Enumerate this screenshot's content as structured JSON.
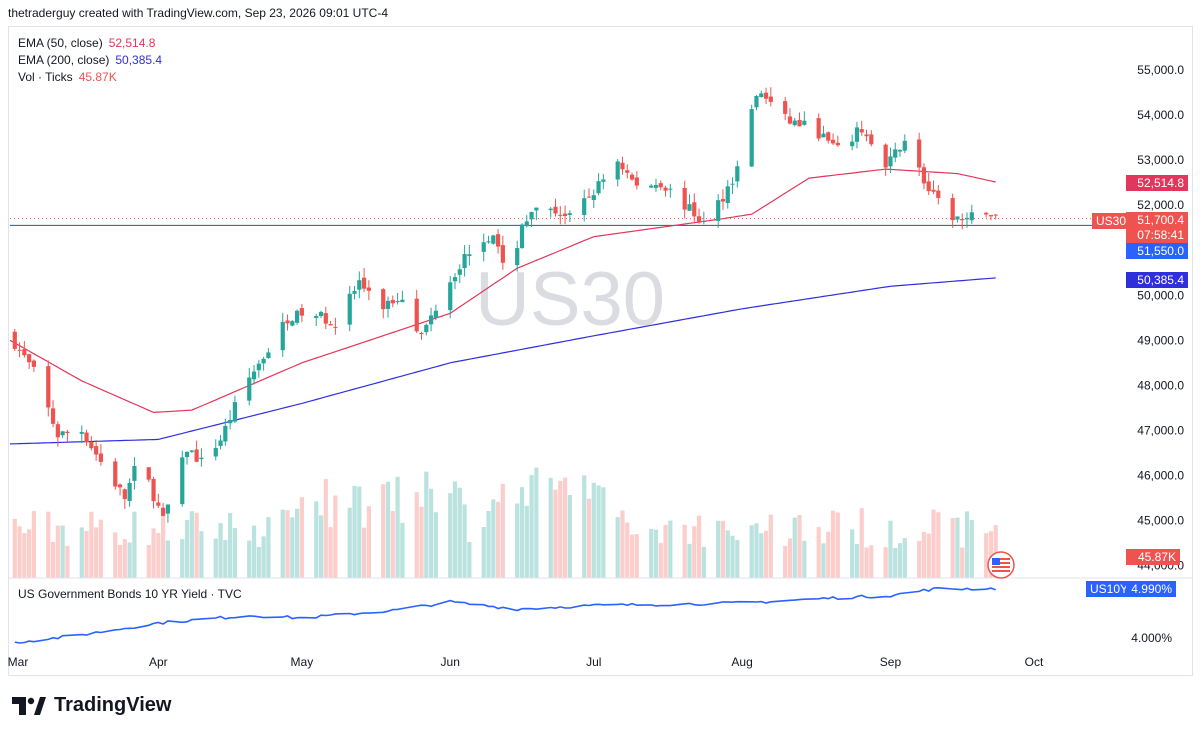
{
  "header": {
    "text": "thetraderguy created with TradingView.com, Sep 23, 2026 09:01 UTC-4"
  },
  "legend": {
    "ema50_label": "EMA (50, close)",
    "ema50_value": "52,514.8",
    "ema200_label": "EMA (200, close)",
    "ema200_value": "50,385.4",
    "vol_label": "Vol · Ticks",
    "vol_value": "45.87K"
  },
  "watermark": "US30",
  "subpanel": {
    "title": "US Government Bonds 10 YR Yield · TVC",
    "symbol": "US10Y",
    "value": "4.990%",
    "tick": "4.000%"
  },
  "tags": {
    "ema50": "52,514.8",
    "symbol": "US30",
    "price": "51,700.4",
    "countdown": "07:58:41",
    "level": "51,550.0",
    "ema200": "50,385.4",
    "volume": "45.87K"
  },
  "footer": {
    "brand": "TradingView"
  },
  "colors": {
    "up": "#26a69a",
    "down": "#ef5350",
    "ema50": "#e2365c",
    "ema200": "#2f2fdc",
    "yield": "#2962ff",
    "level": "#1f5f78"
  },
  "chart_data": {
    "type": "candlestick",
    "symbol": "US30",
    "price_ticks": [
      "55,000.0",
      "54,000.0",
      "53,000.0",
      "52,000.0",
      "50,000.0",
      "49,000.0",
      "48,000.0",
      "47,000.0",
      "46,000.0",
      "45,000.0",
      "44,000.0"
    ],
    "price_tick_values": [
      55000,
      54000,
      53000,
      52000,
      50000,
      49000,
      48000,
      47000,
      46000,
      45000,
      44000
    ],
    "x_labels": [
      "Mar",
      "Apr",
      "May",
      "Jun",
      "Jul",
      "Aug",
      "Sep",
      "Oct"
    ],
    "x_label_dates": [
      "2026-03-01",
      "2026-04-01",
      "2026-05-01",
      "2026-06-01",
      "2026-07-01",
      "2026-08-01",
      "2026-09-01",
      "2026-10-01"
    ],
    "first_date": "2026-03-01",
    "last_date": "2026-09-23",
    "close_anchors": [
      [
        "2026-03-01",
        49100
      ],
      [
        "2026-03-06",
        48300
      ],
      [
        "2026-03-11",
        46900
      ],
      [
        "2026-03-16",
        47000
      ],
      [
        "2026-03-20",
        46300
      ],
      [
        "2026-03-25",
        45500
      ],
      [
        "2026-03-28",
        46400
      ],
      [
        "2026-04-02",
        45000
      ],
      [
        "2026-04-07",
        46600
      ],
      [
        "2026-04-10",
        46300
      ],
      [
        "2026-04-14",
        46800
      ],
      [
        "2026-04-19",
        48000
      ],
      [
        "2026-04-24",
        48800
      ],
      [
        "2026-04-28",
        49500
      ],
      [
        "2026-05-03",
        49600
      ],
      [
        "2026-05-08",
        49400
      ],
      [
        "2026-05-13",
        50300
      ],
      [
        "2026-05-17",
        49700
      ],
      [
        "2026-05-22",
        50000
      ],
      [
        "2026-05-26",
        49100
      ],
      [
        "2026-05-31",
        50200
      ],
      [
        "2026-06-05",
        51000
      ],
      [
        "2026-06-10",
        51400
      ],
      [
        "2026-06-13",
        50200
      ],
      [
        "2026-06-16",
        51600
      ],
      [
        "2026-06-21",
        52000
      ],
      [
        "2026-06-26",
        51700
      ],
      [
        "2026-07-01",
        52300
      ],
      [
        "2026-07-06",
        53000
      ],
      [
        "2026-07-10",
        52400
      ],
      [
        "2026-07-15",
        52500
      ],
      [
        "2026-07-19",
        52100
      ],
      [
        "2026-07-24",
        51600
      ],
      [
        "2026-07-28",
        52200
      ],
      [
        "2026-08-01",
        53000
      ],
      [
        "2026-08-03",
        54200
      ],
      [
        "2026-08-05",
        54500
      ],
      [
        "2026-08-10",
        53900
      ],
      [
        "2026-08-16",
        53700
      ],
      [
        "2026-08-21",
        53200
      ],
      [
        "2026-08-26",
        53700
      ],
      [
        "2026-08-31",
        52800
      ],
      [
        "2026-09-04",
        53500
      ],
      [
        "2026-09-09",
        52300
      ],
      [
        "2026-09-13",
        51800
      ],
      [
        "2026-09-17",
        51600
      ],
      [
        "2026-09-20",
        52000
      ],
      [
        "2026-09-23",
        51700
      ]
    ],
    "ema50_anchors": [
      [
        "2026-03-01",
        49000
      ],
      [
        "2026-03-16",
        48100
      ],
      [
        "2026-03-31",
        47400
      ],
      [
        "2026-04-08",
        47450
      ],
      [
        "2026-05-01",
        48500
      ],
      [
        "2026-06-01",
        49600
      ],
      [
        "2026-06-15",
        50600
      ],
      [
        "2026-07-01",
        51300
      ],
      [
        "2026-07-28",
        51700
      ],
      [
        "2026-08-03",
        51800
      ],
      [
        "2026-08-15",
        52600
      ],
      [
        "2026-08-31",
        52800
      ],
      [
        "2026-09-15",
        52700
      ],
      [
        "2026-09-23",
        52514.8
      ]
    ],
    "ema200_anchors": [
      [
        "2026-03-01",
        46700
      ],
      [
        "2026-04-01",
        46800
      ],
      [
        "2026-05-01",
        47600
      ],
      [
        "2026-06-01",
        48500
      ],
      [
        "2026-07-01",
        49100
      ],
      [
        "2026-08-01",
        49700
      ],
      [
        "2026-09-01",
        50200
      ],
      [
        "2026-09-23",
        50385.4
      ]
    ],
    "current_price": 51700.4,
    "horizontal_level": 51550.0,
    "volume_last": "45.87K",
    "yield_series": {
      "name": "US10Y",
      "last": 4.99,
      "tick": "4.000%",
      "anchors": [
        [
          "2026-03-01",
          3.9
        ],
        [
          "2026-03-15",
          4.05
        ],
        [
          "2026-04-01",
          4.3
        ],
        [
          "2026-04-20",
          4.45
        ],
        [
          "2026-05-01",
          4.4
        ],
        [
          "2026-05-20",
          4.55
        ],
        [
          "2026-06-01",
          4.72
        ],
        [
          "2026-06-15",
          4.58
        ],
        [
          "2026-07-01",
          4.65
        ],
        [
          "2026-07-20",
          4.68
        ],
        [
          "2026-08-01",
          4.7
        ],
        [
          "2026-08-20",
          4.8
        ],
        [
          "2026-09-01",
          4.85
        ],
        [
          "2026-09-10",
          4.98
        ],
        [
          "2026-09-23",
          4.99
        ]
      ]
    }
  }
}
